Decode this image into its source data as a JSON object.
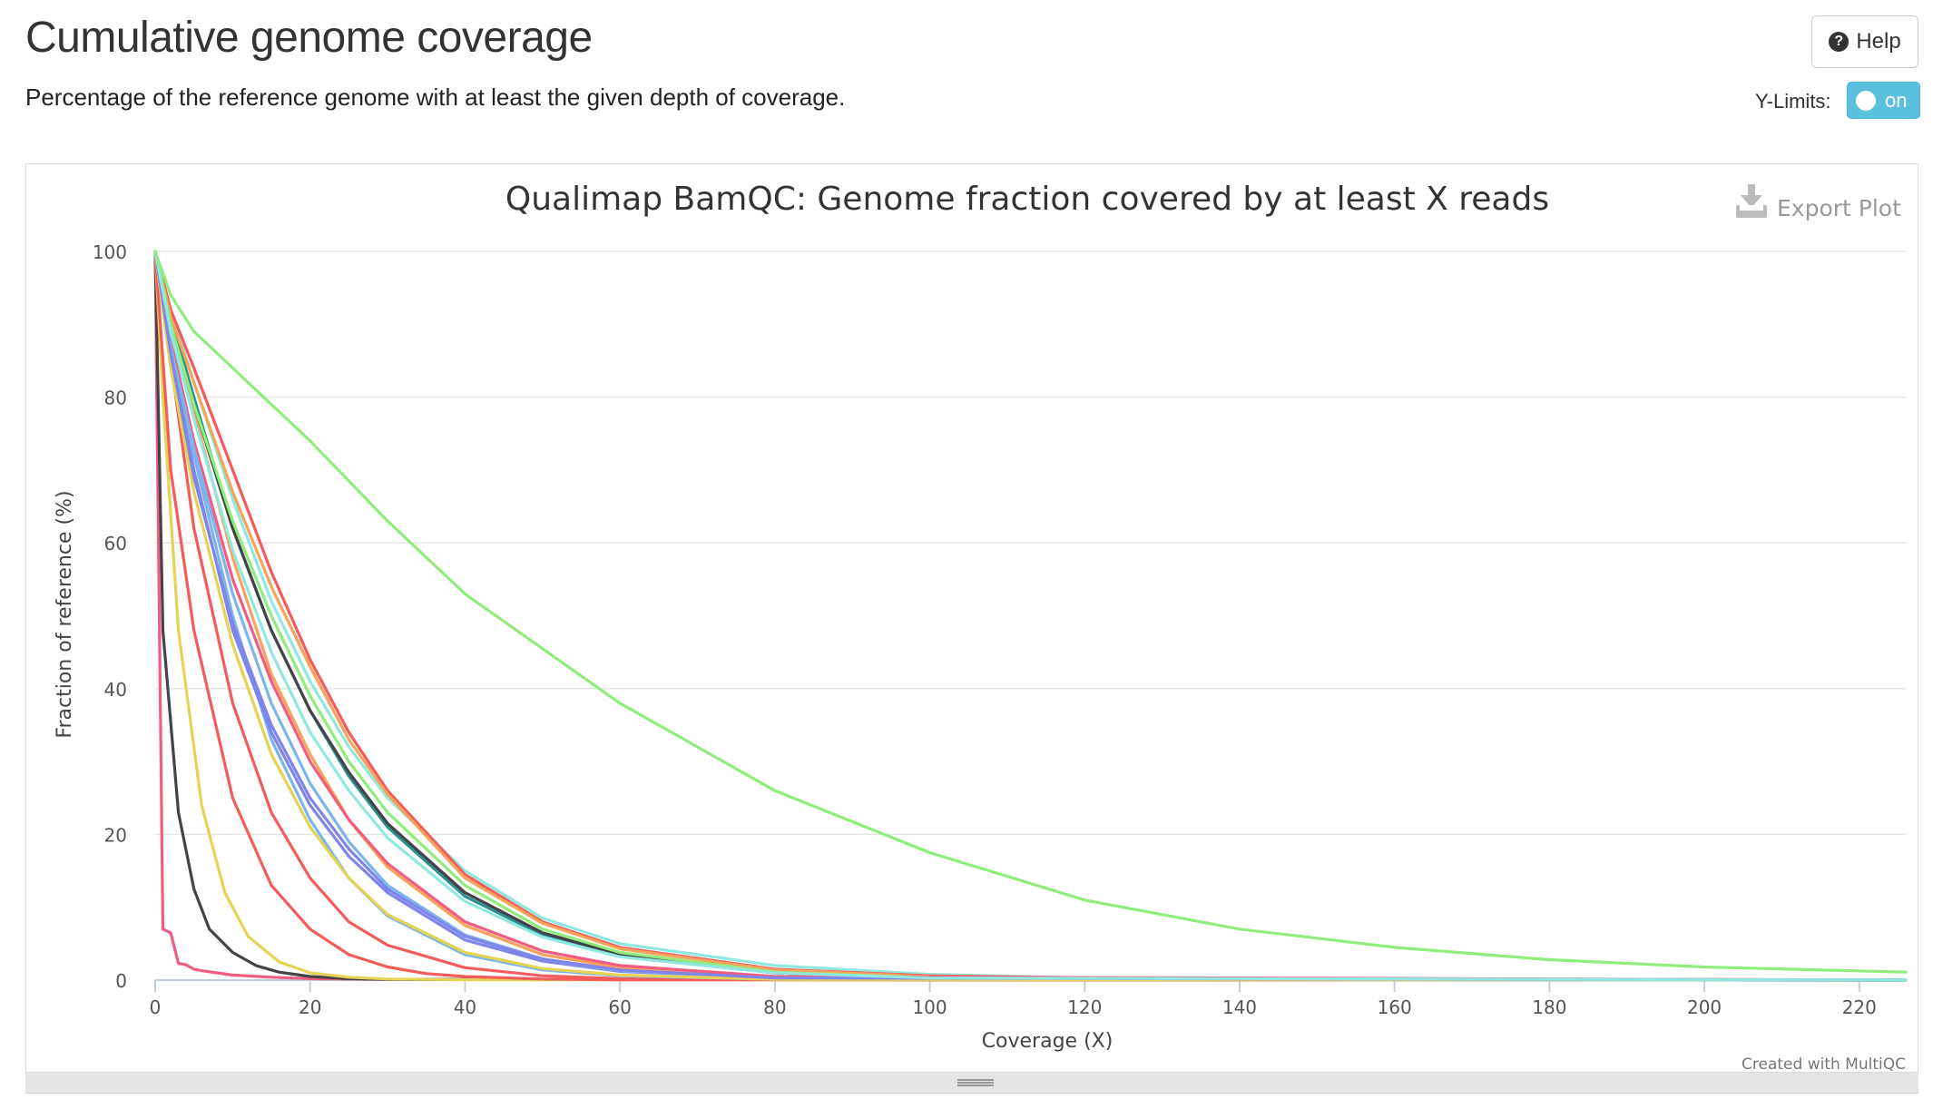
{
  "header": {
    "title": "Cumulative genome coverage",
    "subtitle": "Percentage of the reference genome with at least the given depth of coverage.",
    "help_label": "Help",
    "ylimits_label": "Y-Limits:",
    "ylimits_toggle": "on"
  },
  "chart": {
    "export_label": "Export Plot",
    "credit": "Created with MultiQC"
  },
  "chart_data": {
    "type": "line",
    "title": "Qualimap BamQC: Genome fraction covered by at least X reads",
    "xlabel": "Coverage (X)",
    "ylabel": "Fraction of reference (%)",
    "xlim": [
      0,
      226
    ],
    "ylim": [
      0,
      100
    ],
    "x_ticks": [
      0,
      20,
      40,
      60,
      80,
      100,
      120,
      140,
      160,
      180,
      200,
      220
    ],
    "y_ticks": [
      0,
      20,
      40,
      60,
      80,
      100
    ],
    "grid": true,
    "legend": "none",
    "colors": [
      "#7cb5ec",
      "#434348",
      "#90ed7d",
      "#f7a35c",
      "#8085e9",
      "#f15c80",
      "#e4d354",
      "#2b908f",
      "#f45b5b",
      "#91e8e1"
    ],
    "series": [
      {
        "color": "#90ed7d",
        "x": [
          0,
          2,
          5,
          10,
          20,
          30,
          40,
          60,
          80,
          100,
          120,
          140,
          160,
          180,
          200,
          226
        ],
        "y": [
          100,
          94,
          89,
          84,
          74,
          63,
          53,
          38,
          26,
          17.5,
          11,
          7,
          4.5,
          2.8,
          1.8,
          1.1
        ]
      },
      {
        "color": "#f15c80",
        "x": [
          0,
          1,
          2,
          3,
          4,
          5,
          6,
          8,
          10,
          15,
          20,
          30,
          226
        ],
        "y": [
          100,
          7,
          6.5,
          2.3,
          2.1,
          1.5,
          1.3,
          1,
          0.7,
          0.4,
          0.2,
          0.1,
          0
        ]
      },
      {
        "color": "#434348",
        "x": [
          0,
          1,
          3,
          5,
          7,
          10,
          13,
          16,
          20,
          25,
          30,
          226
        ],
        "y": [
          100,
          48,
          23,
          12.5,
          7,
          3.8,
          2,
          1.1,
          0.5,
          0.2,
          0.1,
          0
        ]
      },
      {
        "color": "#e4d354",
        "x": [
          0,
          1,
          3,
          6,
          9,
          12,
          16,
          20,
          25,
          30,
          40,
          226
        ],
        "y": [
          100,
          80,
          48,
          24,
          12,
          6,
          2.5,
          1,
          0.4,
          0.15,
          0.05,
          0
        ]
      },
      {
        "color": "#f45b5b",
        "x": [
          0,
          2,
          5,
          10,
          15,
          20,
          25,
          30,
          35,
          40,
          50,
          60,
          226
        ],
        "y": [
          100,
          70,
          48,
          25,
          13,
          7,
          3.5,
          1.8,
          0.9,
          0.5,
          0.15,
          0.05,
          0
        ]
      },
      {
        "color": "#f45b5b",
        "x": [
          0,
          2,
          5,
          10,
          15,
          20,
          25,
          30,
          40,
          50,
          60,
          70,
          226
        ],
        "y": [
          100,
          85,
          62,
          38,
          23,
          14,
          8,
          4.8,
          1.7,
          0.6,
          0.2,
          0.1,
          0
        ]
      },
      {
        "color": "#7cb5ec",
        "x": [
          0,
          2,
          5,
          10,
          15,
          20,
          25,
          30,
          40,
          50,
          60,
          80,
          226
        ],
        "y": [
          100,
          88,
          72,
          50,
          33,
          22,
          14,
          8.8,
          3.5,
          1.4,
          0.6,
          0.1,
          0
        ]
      },
      {
        "color": "#8085e9",
        "x": [
          0,
          2,
          5,
          10,
          15,
          20,
          25,
          30,
          40,
          50,
          60,
          80,
          226
        ],
        "y": [
          100,
          86,
          70,
          48,
          34,
          24,
          17,
          12,
          5.5,
          2.6,
          1.2,
          0.3,
          0
        ]
      },
      {
        "color": "#f7a35c",
        "x": [
          0,
          2,
          5,
          10,
          15,
          20,
          25,
          30,
          40,
          50,
          60,
          80,
          226
        ],
        "y": [
          100,
          90,
          78,
          58,
          42,
          31,
          22,
          15.5,
          7.5,
          3.5,
          1.7,
          0.4,
          0
        ]
      },
      {
        "color": "#2b908f",
        "x": [
          0,
          2,
          5,
          10,
          15,
          20,
          25,
          30,
          40,
          50,
          60,
          80,
          100,
          226
        ],
        "y": [
          100,
          91,
          80,
          62,
          48,
          37,
          28,
          21,
          11.5,
          6.2,
          3.3,
          1,
          0.3,
          0
        ]
      },
      {
        "color": "#434348",
        "x": [
          0,
          2,
          5,
          10,
          15,
          20,
          25,
          30,
          40,
          50,
          60,
          80,
          100,
          226
        ],
        "y": [
          100,
          90,
          79,
          62,
          48,
          37,
          28.5,
          21.5,
          12,
          6.5,
          3.5,
          1,
          0.3,
          0
        ]
      },
      {
        "color": "#91e8e1",
        "x": [
          0,
          2,
          5,
          10,
          15,
          20,
          25,
          30,
          40,
          50,
          60,
          80,
          100,
          120,
          226
        ],
        "y": [
          100,
          92,
          82,
          66,
          52,
          41,
          32,
          25,
          15,
          8.5,
          5,
          2,
          0.8,
          0.3,
          0
        ]
      },
      {
        "color": "#f45b5b",
        "x": [
          0,
          2,
          5,
          10,
          15,
          20,
          25,
          30,
          40,
          50,
          60,
          80,
          100,
          120,
          226
        ],
        "y": [
          100,
          92,
          84,
          70,
          56,
          44,
          34,
          26,
          14.5,
          8,
          4.5,
          1.5,
          0.6,
          0.3,
          0
        ]
      },
      {
        "color": "#f7a35c",
        "x": [
          0,
          2,
          5,
          10,
          15,
          20,
          25,
          30,
          40,
          50,
          60,
          80,
          100,
          120,
          226
        ],
        "y": [
          100,
          91,
          82,
          67,
          54,
          43,
          33,
          25.5,
          14,
          7.8,
          4.3,
          1.4,
          0.5,
          0.2,
          0
        ]
      },
      {
        "color": "#90ed7d",
        "x": [
          0,
          2,
          5,
          10,
          15,
          20,
          25,
          30,
          40,
          50,
          60,
          80,
          100,
          226
        ],
        "y": [
          100,
          90,
          79,
          63,
          50,
          39,
          30,
          23,
          13,
          7,
          3.8,
          1.1,
          0.3,
          0
        ]
      },
      {
        "color": "#f15c80",
        "x": [
          0,
          2,
          5,
          10,
          15,
          20,
          25,
          30,
          40,
          50,
          60,
          80,
          226
        ],
        "y": [
          100,
          88,
          74,
          55,
          41,
          30,
          22,
          16,
          8,
          4,
          2,
          0.5,
          0
        ]
      },
      {
        "color": "#7cb5ec",
        "x": [
          0,
          2,
          5,
          10,
          15,
          20,
          25,
          30,
          40,
          50,
          60,
          80,
          226
        ],
        "y": [
          100,
          87,
          73,
          53,
          38,
          27,
          19,
          13,
          6.2,
          2.9,
          1.3,
          0.3,
          0
        ]
      },
      {
        "color": "#e4d354",
        "x": [
          0,
          2,
          5,
          10,
          15,
          20,
          25,
          30,
          40,
          50,
          60,
          80,
          226
        ],
        "y": [
          100,
          84,
          67,
          46,
          31,
          21,
          14,
          9,
          3.8,
          1.6,
          0.7,
          0.1,
          0
        ]
      },
      {
        "color": "#8085e9",
        "x": [
          0,
          2,
          5,
          10,
          15,
          20,
          25,
          30,
          40,
          50,
          60,
          80,
          226
        ],
        "y": [
          100,
          86,
          69,
          49,
          35,
          25,
          18,
          12.5,
          6,
          2.9,
          1.4,
          0.3,
          0
        ]
      },
      {
        "color": "#91e8e1",
        "x": [
          0,
          2,
          5,
          10,
          15,
          20,
          25,
          30,
          40,
          50,
          60,
          80,
          100,
          226
        ],
        "y": [
          100,
          89,
          77,
          59,
          45,
          34,
          26,
          19.5,
          10.8,
          5.9,
          3.2,
          1,
          0.3,
          0
        ]
      }
    ]
  }
}
